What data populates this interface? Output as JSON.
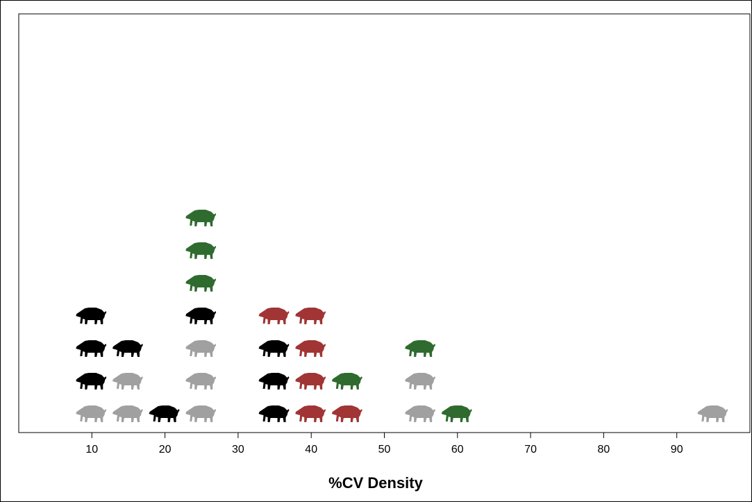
{
  "chart_data": {
    "type": "pictogram",
    "x": [
      10,
      15,
      20,
      25,
      35,
      40,
      45,
      55,
      60,
      95
    ],
    "series": [
      {
        "color": "#a0a0a0",
        "values": [
          1,
          2,
          0,
          3,
          0,
          0,
          0,
          2,
          0,
          1
        ]
      },
      {
        "color": "#000000",
        "values": [
          3,
          1,
          1,
          1,
          3,
          0,
          0,
          0,
          0,
          0
        ]
      },
      {
        "color": "#a13434",
        "values": [
          0,
          0,
          0,
          0,
          1,
          4,
          1,
          0,
          0,
          0
        ]
      },
      {
        "color": "#2f6b2f",
        "values": [
          0,
          0,
          0,
          3,
          0,
          0,
          1,
          1,
          1,
          0
        ]
      }
    ],
    "xlim": [
      0,
      100
    ],
    "xticks": [
      10,
      20,
      30,
      40,
      50,
      60,
      70,
      80,
      90
    ],
    "xlabel": "%CV Density"
  }
}
